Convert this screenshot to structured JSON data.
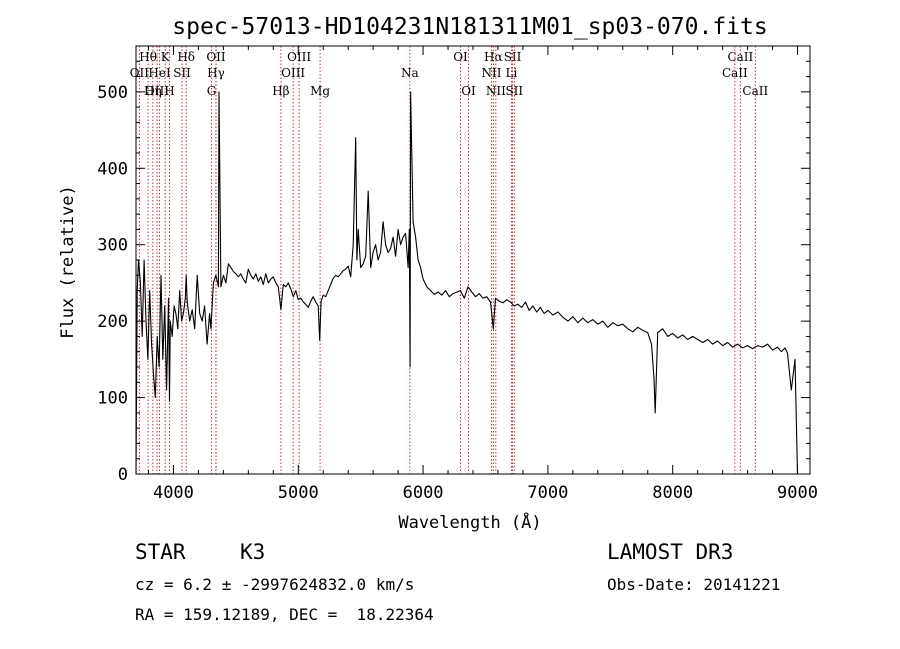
{
  "chart_data": {
    "type": "line",
    "title": "spec-57013-HD104231N181311M01_sp03-070.fits",
    "xlabel": "Wavelength (Å)",
    "ylabel": "Flux (relative)",
    "xlim": [
      3700,
      9100
    ],
    "ylim": [
      0,
      560
    ],
    "xticks": [
      4000,
      5000,
      6000,
      7000,
      8000,
      9000
    ],
    "yticks": [
      0,
      100,
      200,
      300,
      400,
      500
    ],
    "grid": false,
    "series": [
      {
        "name": "spectrum",
        "x": [
          3700,
          3710,
          3720,
          3735,
          3750,
          3765,
          3780,
          3795,
          3810,
          3825,
          3840,
          3855,
          3870,
          3885,
          3900,
          3915,
          3930,
          3945,
          3960,
          3968,
          3975,
          3990,
          4005,
          4020,
          4035,
          4050,
          4065,
          4080,
          4095,
          4102,
          4110,
          4130,
          4150,
          4170,
          4190,
          4210,
          4230,
          4250,
          4270,
          4290,
          4300,
          4320,
          4340,
          4360,
          4365,
          4380,
          4400,
          4420,
          4440,
          4460,
          4480,
          4500,
          4520,
          4540,
          4560,
          4580,
          4600,
          4620,
          4640,
          4660,
          4680,
          4700,
          4720,
          4740,
          4760,
          4780,
          4800,
          4820,
          4840,
          4861,
          4880,
          4900,
          4920,
          4940,
          4960,
          4980,
          5000,
          5020,
          5040,
          5060,
          5080,
          5100,
          5120,
          5140,
          5160,
          5172,
          5183,
          5200,
          5220,
          5240,
          5260,
          5280,
          5300,
          5320,
          5340,
          5360,
          5380,
          5400,
          5420,
          5440,
          5460,
          5470,
          5480,
          5500,
          5520,
          5540,
          5560,
          5580,
          5600,
          5620,
          5640,
          5660,
          5680,
          5700,
          5720,
          5740,
          5760,
          5780,
          5800,
          5820,
          5840,
          5860,
          5880,
          5890,
          5896,
          5900,
          5920,
          5940,
          5960,
          5980,
          6000,
          6030,
          6060,
          6090,
          6120,
          6150,
          6180,
          6210,
          6240,
          6270,
          6300,
          6330,
          6360,
          6390,
          6420,
          6450,
          6480,
          6510,
          6540,
          6563,
          6580,
          6610,
          6640,
          6670,
          6700,
          6730,
          6760,
          6790,
          6820,
          6850,
          6880,
          6910,
          6940,
          6970,
          7000,
          7040,
          7080,
          7120,
          7160,
          7200,
          7240,
          7280,
          7320,
          7360,
          7400,
          7440,
          7480,
          7520,
          7560,
          7600,
          7640,
          7680,
          7720,
          7760,
          7800,
          7830,
          7850,
          7860,
          7880,
          7920,
          7960,
          8000,
          8040,
          8080,
          8120,
          8160,
          8200,
          8240,
          8280,
          8320,
          8360,
          8400,
          8440,
          8480,
          8520,
          8560,
          8600,
          8640,
          8680,
          8720,
          8760,
          8800,
          8840,
          8870,
          8900,
          8920,
          8950,
          8980,
          9000
        ],
        "y": [
          0,
          240,
          280,
          250,
          180,
          280,
          200,
          150,
          240,
          170,
          130,
          100,
          180,
          140,
          260,
          150,
          220,
          110,
          230,
          95,
          200,
          180,
          220,
          210,
          190,
          240,
          200,
          210,
          230,
          260,
          225,
          200,
          215,
          190,
          260,
          210,
          200,
          220,
          170,
          210,
          190,
          250,
          260,
          245,
          500,
          245,
          260,
          250,
          275,
          270,
          265,
          262,
          258,
          262,
          255,
          250,
          268,
          260,
          255,
          262,
          252,
          258,
          248,
          262,
          250,
          255,
          258,
          250,
          245,
          215,
          248,
          245,
          250,
          242,
          232,
          240,
          228,
          230,
          225,
          222,
          218,
          226,
          232,
          225,
          220,
          175,
          226,
          234,
          232,
          240,
          248,
          256,
          260,
          258,
          262,
          266,
          268,
          272,
          258,
          300,
          440,
          280,
          320,
          270,
          275,
          285,
          370,
          270,
          290,
          300,
          280,
          290,
          330,
          300,
          290,
          295,
          310,
          285,
          320,
          300,
          310,
          315,
          270,
          320,
          140,
          500,
          330,
          310,
          280,
          270,
          255,
          245,
          240,
          235,
          238,
          234,
          240,
          232,
          236,
          238,
          240,
          230,
          245,
          238,
          232,
          236,
          230,
          232,
          225,
          190,
          230,
          226,
          224,
          228,
          225,
          220,
          222,
          218,
          225,
          214,
          220,
          212,
          218,
          210,
          214,
          208,
          212,
          205,
          200,
          206,
          198,
          204,
          198,
          202,
          196,
          200,
          192,
          198,
          194,
          196,
          190,
          186,
          192,
          188,
          185,
          170,
          125,
          80,
          185,
          190,
          180,
          184,
          178,
          182,
          176,
          180,
          176,
          172,
          176,
          170,
          174,
          168,
          172,
          166,
          170,
          165,
          168,
          164,
          168,
          166,
          170,
          162,
          166,
          160,
          165,
          158,
          110,
          150,
          0
        ]
      }
    ],
    "line_marks": [
      {
        "label": "Hθ",
        "x": 3797,
        "row": 1
      },
      {
        "label": "OII",
        "x": 3727,
        "row": 2
      },
      {
        "label": "OIII",
        "x": 3869,
        "row": 3
      },
      {
        "label": "Hη",
        "x": 3835,
        "row": 3
      },
      {
        "label": "K",
        "x": 3934,
        "row": 1
      },
      {
        "label": "HeI",
        "x": 3889,
        "row": 2
      },
      {
        "label": "H",
        "x": 3968,
        "row": 3
      },
      {
        "label": "SII",
        "x": 4069,
        "row": 2
      },
      {
        "label": "Hδ",
        "x": 4102,
        "row": 1
      },
      {
        "label": "OII",
        "x": 4341,
        "row": 1
      },
      {
        "label": "Hγ",
        "x": 4341,
        "row": 2
      },
      {
        "label": "G",
        "x": 4305,
        "row": 3
      },
      {
        "label": "OIII",
        "x": 5007,
        "row": 1
      },
      {
        "label": "OIII",
        "x": 4959,
        "row": 2
      },
      {
        "label": "Hβ",
        "x": 4861,
        "row": 3
      },
      {
        "label": "Mg",
        "x": 5175,
        "row": 3
      },
      {
        "label": "Na",
        "x": 5894,
        "row": 2
      },
      {
        "label": "OI",
        "x": 6300,
        "row": 1
      },
      {
        "label": "OI",
        "x": 6364,
        "row": 3
      },
      {
        "label": "Hα",
        "x": 6563,
        "row": 1
      },
      {
        "label": "SII",
        "x": 6717,
        "row": 1
      },
      {
        "label": "NII",
        "x": 6548,
        "row": 2
      },
      {
        "label": "Li",
        "x": 6708,
        "row": 2
      },
      {
        "label": "NII",
        "x": 6583,
        "row": 3
      },
      {
        "label": "SII",
        "x": 6731,
        "row": 3
      },
      {
        "label": "CaII",
        "x": 8542,
        "row": 1
      },
      {
        "label": "CaII",
        "x": 8498,
        "row": 2
      },
      {
        "label": "CaII",
        "x": 8662,
        "row": 3
      }
    ]
  },
  "info": {
    "object_class": "STAR",
    "subclass": "K3",
    "survey": "LAMOST DR3",
    "cz": "cz = 6.2 ± -2997624832.0 km/s",
    "obs_date": "Obs-Date: 20141221",
    "coords": "RA = 159.12189, DEC =  18.22364"
  }
}
